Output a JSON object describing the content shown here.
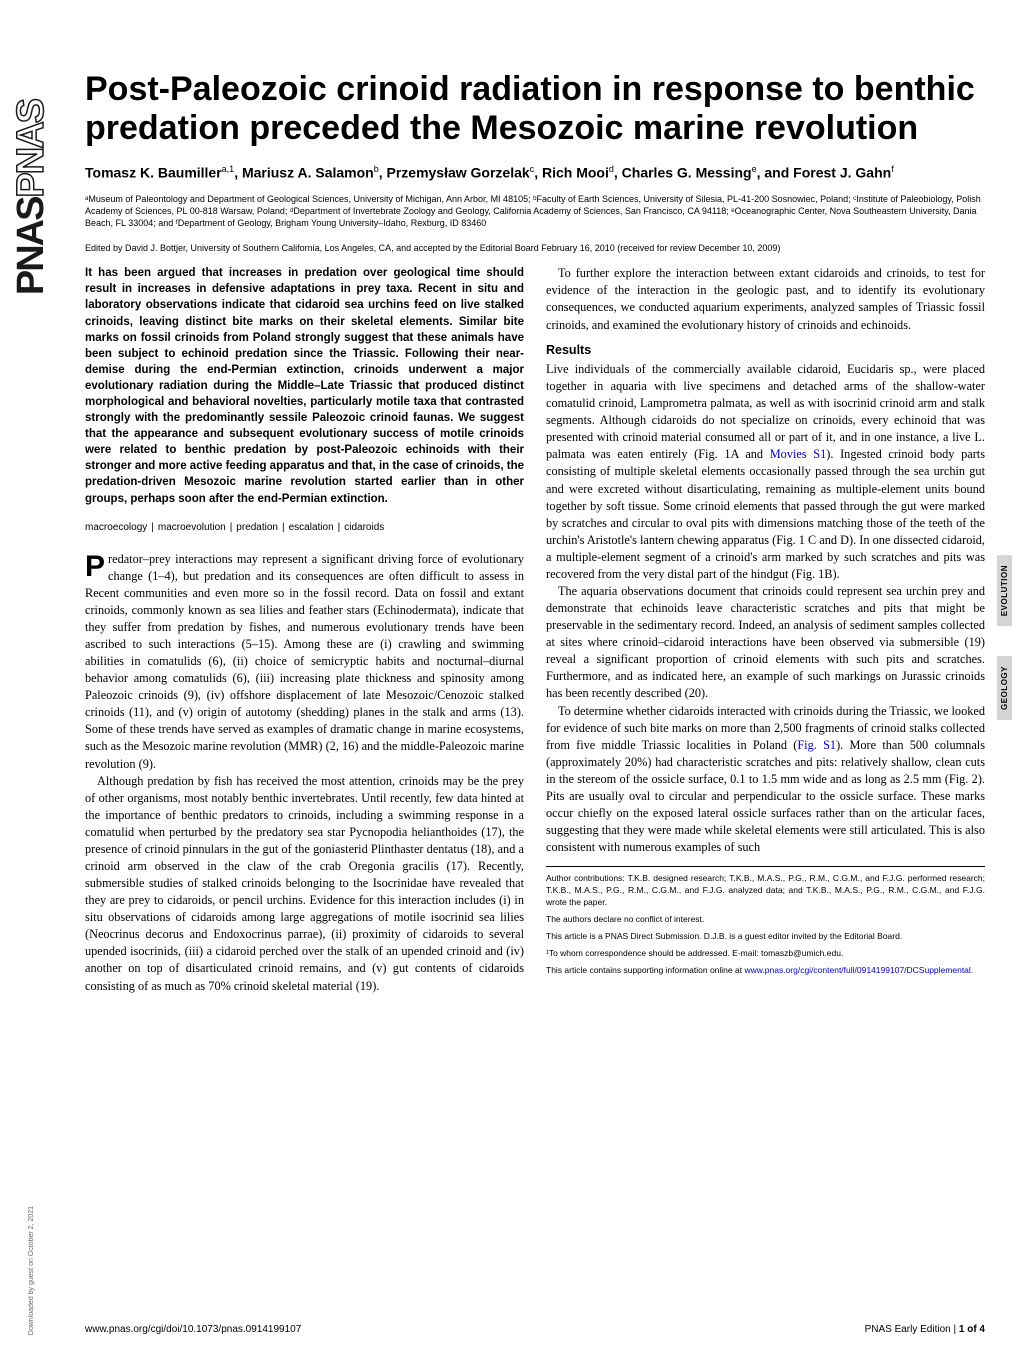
{
  "journal": {
    "logo_solid": "PNAS",
    "logo_outline": "PNAS"
  },
  "title": "Post-Paleozoic crinoid radiation in response to benthic predation preceded the Mesozoic marine revolution",
  "authors_line": "Tomasz K. Baumiller",
  "authors_sup1": "a,1",
  "authors_2": ", Mariusz A. Salamon",
  "authors_sup2": "b",
  "authors_3": ", Przemysław Gorzelak",
  "authors_sup3": "c",
  "authors_4": ", Rich Mooi",
  "authors_sup4": "d",
  "authors_5": ", Charles G. Messing",
  "authors_sup5": "e",
  "authors_6": ", and Forest J. Gahn",
  "authors_sup6": "f",
  "affiliations": "ᵃMuseum of Paleontology and Department of Geological Sciences, University of Michigan, Ann Arbor, MI 48105; ᵇFaculty of Earth Sciences, University of Silesia, PL-41-200 Sosnowiec, Poland; ᶜInstitute of Paleobiology, Polish Academy of Sciences, PL 00-818 Warsaw, Poland; ᵈDepartment of Invertebrate Zoology and Geology, California Academy of Sciences, San Francisco, CA 94118; ᵉOceanographic Center, Nova Southeastern University, Dania Beach, FL 33004; and ᶠDepartment of Geology, Brigham Young University–Idaho, Rexburg, ID 83460",
  "edited": "Edited by David J. Bottjer, University of Southern California, Los Angeles, CA, and accepted by the Editorial Board February 16, 2010 (received for review December 10, 2009)",
  "abstract": "It has been argued that increases in predation over geological time should result in increases in defensive adaptations in prey taxa. Recent in situ and laboratory observations indicate that cidaroid sea urchins feed on live stalked crinoids, leaving distinct bite marks on their skeletal elements. Similar bite marks on fossil crinoids from Poland strongly suggest that these animals have been subject to echinoid predation since the Triassic. Following their near-demise during the end-Permian extinction, crinoids underwent a major evolutionary radiation during the Middle–Late Triassic that produced distinct morphological and behavioral novelties, particularly motile taxa that contrasted strongly with the predominantly sessile Paleozoic crinoid faunas. We suggest that the appearance and subsequent evolutionary success of motile crinoids were related to benthic predation by post-Paleozoic echinoids with their stronger and more active feeding apparatus and that, in the case of crinoids, the predation-driven Mesozoic marine revolution started earlier than in other groups, perhaps soon after the end-Permian extinction.",
  "keywords": {
    "k1": "macroecology",
    "k2": "macroevolution",
    "k3": "predation",
    "k4": "escalation",
    "k5": "cidaroids"
  },
  "body": {
    "p1_first_letter": "P",
    "p1": "redator–prey interactions may represent a significant driving force of evolutionary change (1–4), but predation and its consequences are often difficult to assess in Recent communities and even more so in the fossil record. Data on fossil and extant crinoids, commonly known as sea lilies and feather stars (Echinodermata), indicate that they suffer from predation by fishes, and numerous evolutionary trends have been ascribed to such interactions (5–15). Among these are (i) crawling and swimming abilities in comatulids (6), (ii) choice of semicryptic habits and nocturnal–diurnal behavior among comatulids (6), (iii) increasing plate thickness and spinosity among Paleozoic crinoids (9), (iv) offshore displacement of late Mesozoic/Cenozoic stalked crinoids (11), and (v) origin of autotomy (shedding) planes in the stalk and arms (13). Some of these trends have served as examples of dramatic change in marine ecosystems, such as the Mesozoic marine revolution (MMR) (2, 16) and the middle-Paleozoic marine revolution (9).",
    "p2": "Although predation by fish has received the most attention, crinoids may be the prey of other organisms, most notably benthic invertebrates. Until recently, few data hinted at the importance of benthic predators to crinoids, including a swimming response in a comatulid when perturbed by the predatory sea star Pycnopodia helianthoides (17), the presence of crinoid pinnulars in the gut of the goniasterid Plinthaster dentatus (18), and a crinoid arm observed in the claw of the crab Oregonia gracilis (17). Recently, submersible studies of stalked crinoids belonging to the Isocrinidae have revealed that they are prey to cidaroids, or pencil urchins. Evidence for this interaction includes (i) in situ observations of cidaroids among large aggregations of motile isocrinid sea lilies (Neocrinus decorus and Endoxocrinus parrae), (ii) proximity of cidaroids to several upended isocrinids, (iii) a cidaroid perched over the stalk of an upended crinoid and (iv) another on top of disarticulated crinoid remains, and (v) gut contents of cidaroids consisting of as much as 70% crinoid skeletal material (19).",
    "p3": "To further explore the interaction between extant cidaroids and crinoids, to test for evidence of the interaction in the geologic past, and to identify its evolutionary consequences, we conducted aquarium experiments, analyzed samples of Triassic fossil crinoids, and examined the evolutionary history of crinoids and echinoids.",
    "results_head": "Results",
    "p4a": "Live individuals of the commercially available cidaroid, Eucidaris sp., were placed together in aquaria with live specimens and detached arms of the shallow-water comatulid crinoid, Lamprometra palmata, as well as with isocrinid crinoid arm and stalk segments. Although cidaroids do not specialize on crinoids, every echinoid that was presented with crinoid material consumed all or part of it, and in one instance, a live L. palmata was eaten entirely (Fig. 1A and ",
    "movies_link": "Movies S1",
    "p4b": "). Ingested crinoid body parts consisting of multiple skeletal elements occasionally passed through the sea urchin gut and were excreted without disarticulating, remaining as multiple-element units bound together by soft tissue. Some crinoid elements that passed through the gut were marked by scratches and circular to oval pits with dimensions matching those of the teeth of the urchin's Aristotle's lantern chewing apparatus (Fig. 1 C and D). In one dissected cidaroid, a multiple-element segment of a crinoid's arm marked by such scratches and pits was recovered from the very distal part of the hindgut (Fig. 1B).",
    "p5": "The aquaria observations document that crinoids could represent sea urchin prey and demonstrate that echinoids leave characteristic scratches and pits that might be preservable in the sedimentary record. Indeed, an analysis of sediment samples collected at sites where crinoid–cidaroid interactions have been observed via submersible (19) reveal a significant proportion of crinoid elements with such pits and scratches. Furthermore, and as indicated here, an example of such markings on Jurassic crinoids has been recently described (20).",
    "p6a": "To determine whether cidaroids interacted with crinoids during the Triassic, we looked for evidence of such bite marks on more than 2,500 fragments of crinoid stalks collected from five middle Triassic localities in Poland (",
    "fig_link": "Fig. S1",
    "p6b": "). More than 500 columnals (approximately 20%) had characteristic scratches and pits: relatively shallow, clean cuts in the stereom of the ossicle surface, 0.1 to 1.5 mm wide and as long as 2.5 mm (Fig. 2). Pits are usually oval to circular and perpendicular to the ossicle surface. These marks occur chiefly on the exposed lateral ossicle surfaces rather than on the articular faces, suggesting that they were made while skeletal elements were still articulated. This is also consistent with numerous examples of such"
  },
  "footnotes": {
    "contrib": "Author contributions: T.K.B. designed research; T.K.B., M.A.S., P.G., R.M., C.G.M., and F.J.G. performed research; T.K.B., M.A.S., P.G., R.M., C.G.M., and F.J.G. analyzed data; and T.K.B., M.A.S., P.G., R.M., C.G.M., and F.J.G. wrote the paper.",
    "conflict": "The authors declare no conflict of interest.",
    "direct": "This article is a PNAS Direct Submission. D.J.B. is a guest editor invited by the Editorial Board.",
    "corr": "¹To whom correspondence should be addressed. E-mail: tomaszb@umich.edu.",
    "supp_a": "This article contains supporting information online at ",
    "supp_link": "www.pnas.org/cgi/content/full/0914199107/DCSupplemental",
    "supp_b": "."
  },
  "side_tags": {
    "t1": "EVOLUTION",
    "t2": "GEOLOGY"
  },
  "footer": {
    "left": "www.pnas.org/cgi/doi/10.1073/pnas.0914199107",
    "right_a": "PNAS Early Edition",
    "right_sep": " | ",
    "right_b": "1 of 4"
  },
  "download_note": "Downloaded by guest on October 2, 2021"
}
